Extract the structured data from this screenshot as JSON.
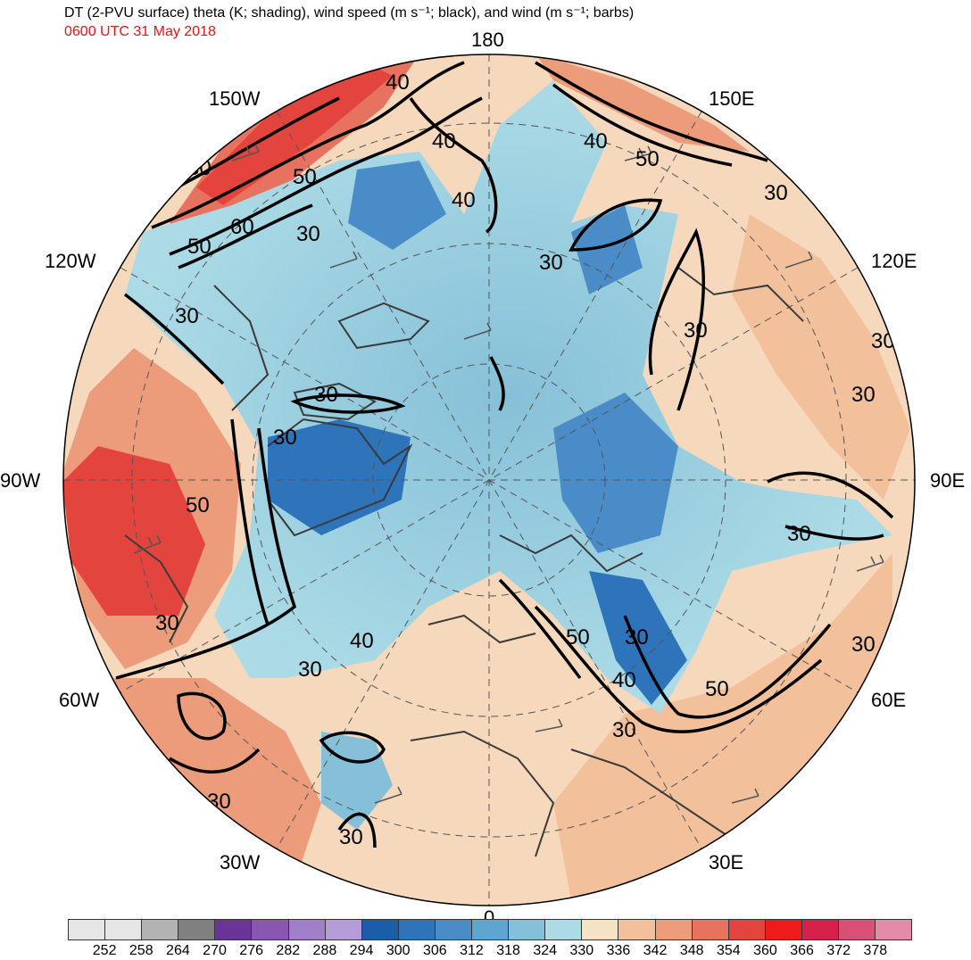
{
  "header": {
    "title": "DT (2-PVU surface) theta (K; shading), wind speed (m s⁻¹; black), and wind (m s⁻¹; barbs)",
    "valid_time": "0600 UTC 31 May 2018"
  },
  "map": {
    "projection": "north-polar-stereographic",
    "longitude_labels": {
      "top": "180",
      "bottom": "0",
      "left": "90W",
      "right": "90E",
      "nw_upper": "150W",
      "nw_lower": "120W",
      "ne_upper": "150E",
      "ne_lower": "120E",
      "sw_upper": "60W",
      "sw_lower": "30W",
      "se_upper": "60E",
      "se_lower": "30E"
    },
    "wind_speed_contour_labels": [
      "30",
      "40",
      "50",
      "60"
    ],
    "colors": {
      "warm_deep": "#e03030",
      "warm": "#e8866a",
      "warm_light": "#f0b896",
      "neutral": "#f6d9bc",
      "cool_light": "#a9d8e6",
      "cool": "#6aaed2",
      "cool_deep": "#2f6fb3",
      "contour": "#000000",
      "coast": "#3a3a3a"
    }
  },
  "colorbar": {
    "labels": [
      "252",
      "258",
      "264",
      "270",
      "276",
      "282",
      "288",
      "294",
      "300",
      "306",
      "312",
      "318",
      "324",
      "330",
      "336",
      "342",
      "348",
      "354",
      "360",
      "366",
      "372",
      "378"
    ],
    "colors": [
      "#e6e6e6",
      "#b3b3b3",
      "#808080",
      "#6a3596",
      "#8a57b0",
      "#a17fc8",
      "#b69bd9",
      "#1b5da8",
      "#2e74bb",
      "#4a8cc8",
      "#5ea6cf",
      "#86c0d8",
      "#acdbe6",
      "#f6e2c4",
      "#f2c19c",
      "#ec9c7b",
      "#e87260",
      "#e3443e",
      "#ee1b1b",
      "#d8204c",
      "#d94f76",
      "#e48ca7"
    ]
  }
}
